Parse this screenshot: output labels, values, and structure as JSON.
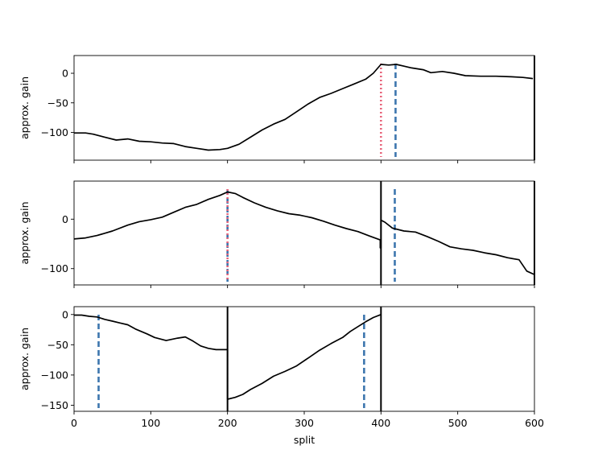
{
  "chart_data": [
    {
      "type": "line",
      "ylabel": "approx. gain",
      "xlim": [
        0,
        600
      ],
      "ylim": [
        -147,
        30
      ],
      "xticks": [
        0,
        100,
        200,
        300,
        400,
        500,
        600
      ],
      "show_x_tick_labels": false,
      "yticks": [
        0,
        -50,
        -100
      ],
      "tick_labels": {
        "y": [
          "0",
          "−50",
          "−100"
        ]
      },
      "series": [
        {
          "color": "#000000",
          "values": [
            [
              0,
              -101
            ],
            [
              15,
              -101
            ],
            [
              25,
              -103
            ],
            [
              40,
              -108
            ],
            [
              55,
              -113
            ],
            [
              70,
              -111
            ],
            [
              85,
              -115
            ],
            [
              100,
              -116
            ],
            [
              115,
              -118
            ],
            [
              130,
              -119
            ],
            [
              145,
              -124
            ],
            [
              160,
              -127
            ],
            [
              175,
              -130
            ],
            [
              190,
              -129
            ],
            [
              200,
              -127
            ],
            [
              215,
              -120
            ],
            [
              230,
              -108
            ],
            [
              245,
              -96
            ],
            [
              260,
              -86
            ],
            [
              275,
              -78
            ],
            [
              290,
              -65
            ],
            [
              305,
              -52
            ],
            [
              320,
              -41
            ],
            [
              335,
              -34
            ],
            [
              350,
              -26
            ],
            [
              365,
              -18
            ],
            [
              380,
              -10
            ],
            [
              390,
              0
            ],
            [
              400,
              15
            ],
            [
              410,
              14
            ],
            [
              420,
              15
            ],
            [
              430,
              12
            ],
            [
              440,
              9
            ],
            [
              455,
              6
            ],
            [
              465,
              1
            ],
            [
              480,
              3
            ],
            [
              495,
              0
            ],
            [
              510,
              -4
            ],
            [
              530,
              -5
            ],
            [
              550,
              -5
            ],
            [
              570,
              -6
            ],
            [
              585,
              -7
            ],
            [
              598,
              -9
            ]
          ]
        }
      ],
      "vlines": [
        {
          "x": 600,
          "style": "solid",
          "color": "#000000"
        },
        {
          "x": 400,
          "style": "dotted",
          "color": "#e7647a"
        },
        {
          "x": 419,
          "style": "dashed",
          "color": "#3d76ae"
        }
      ]
    },
    {
      "type": "line",
      "ylabel": "approx. gain",
      "xlim": [
        0,
        600
      ],
      "ylim": [
        -133,
        77
      ],
      "xticks": [
        0,
        100,
        200,
        300,
        400,
        500,
        600
      ],
      "show_x_tick_labels": false,
      "yticks": [
        0,
        -100
      ],
      "tick_labels": {
        "y": [
          "0",
          "−100"
        ]
      },
      "series": [
        {
          "color": "#000000",
          "values": [
            [
              0,
              -40
            ],
            [
              15,
              -38
            ],
            [
              30,
              -33
            ],
            [
              50,
              -24
            ],
            [
              70,
              -12
            ],
            [
              85,
              -5
            ],
            [
              100,
              -1
            ],
            [
              115,
              4
            ],
            [
              130,
              14
            ],
            [
              145,
              24
            ],
            [
              160,
              30
            ],
            [
              175,
              40
            ],
            [
              190,
              48
            ],
            [
              200,
              55
            ],
            [
              210,
              52
            ],
            [
              220,
              44
            ],
            [
              235,
              33
            ],
            [
              250,
              24
            ],
            [
              265,
              17
            ],
            [
              280,
              11
            ],
            [
              295,
              8
            ],
            [
              310,
              3
            ],
            [
              325,
              -4
            ],
            [
              340,
              -12
            ],
            [
              355,
              -19
            ],
            [
              370,
              -25
            ],
            [
              385,
              -34
            ],
            [
              399,
              -42
            ],
            [
              399,
              -58
            ],
            [
              400,
              -58
            ],
            [
              400,
              -2
            ],
            [
              405,
              -6
            ],
            [
              415,
              -18
            ],
            [
              430,
              -24
            ],
            [
              445,
              -26
            ],
            [
              460,
              -35
            ],
            [
              475,
              -45
            ],
            [
              490,
              -56
            ],
            [
              505,
              -60
            ],
            [
              520,
              -63
            ],
            [
              535,
              -68
            ],
            [
              550,
              -72
            ],
            [
              565,
              -78
            ],
            [
              580,
              -82
            ],
            [
              590,
              -105
            ],
            [
              600,
              -112
            ]
          ]
        }
      ],
      "vlines": [
        {
          "x": 400,
          "style": "solid",
          "color": "#000000"
        },
        {
          "x": 600,
          "style": "solid",
          "color": "#000000"
        },
        {
          "x": 200,
          "style": "dashed",
          "color": "#3d76ae"
        },
        {
          "x": 200,
          "style": "dotted",
          "color": "#e7647a"
        },
        {
          "x": 418,
          "style": "dashed",
          "color": "#3d76ae"
        }
      ]
    },
    {
      "type": "line",
      "ylabel": "approx. gain",
      "xlabel": "split",
      "xlim": [
        0,
        600
      ],
      "ylim": [
        -160,
        13
      ],
      "xticks": [
        0,
        100,
        200,
        300,
        400,
        500,
        600
      ],
      "show_x_tick_labels": true,
      "yticks": [
        0,
        -50,
        -100,
        -150
      ],
      "tick_labels": {
        "x": [
          "0",
          "100",
          "200",
          "300",
          "400",
          "500",
          "600"
        ],
        "y": [
          "0",
          "−50",
          "−100",
          "−150"
        ]
      },
      "series": [
        {
          "color": "#000000",
          "values": [
            [
              0,
              -1
            ],
            [
              10,
              -1
            ],
            [
              20,
              -3
            ],
            [
              30,
              -4
            ],
            [
              40,
              -8
            ],
            [
              50,
              -11
            ],
            [
              60,
              -14
            ],
            [
              70,
              -17
            ],
            [
              80,
              -24
            ],
            [
              95,
              -32
            ],
            [
              105,
              -38
            ],
            [
              120,
              -43
            ],
            [
              135,
              -39
            ],
            [
              145,
              -37
            ],
            [
              155,
              -44
            ],
            [
              165,
              -52
            ],
            [
              175,
              -56
            ],
            [
              185,
              -58
            ],
            [
              199,
              -58
            ],
            [
              200,
              -58
            ],
            [
              200,
              -140
            ],
            [
              210,
              -137
            ],
            [
              220,
              -132
            ],
            [
              230,
              -124
            ],
            [
              245,
              -114
            ],
            [
              260,
              -102
            ],
            [
              275,
              -94
            ],
            [
              290,
              -85
            ],
            [
              305,
              -72
            ],
            [
              320,
              -59
            ],
            [
              335,
              -48
            ],
            [
              350,
              -38
            ],
            [
              360,
              -28
            ],
            [
              370,
              -20
            ],
            [
              380,
              -12
            ],
            [
              390,
              -5
            ],
            [
              400,
              0
            ]
          ]
        }
      ],
      "vlines": [
        {
          "x": 200,
          "style": "solid",
          "color": "#000000"
        },
        {
          "x": 400,
          "style": "solid",
          "color": "#000000"
        },
        {
          "x": 32,
          "style": "dashed",
          "color": "#3d76ae"
        },
        {
          "x": 378,
          "style": "dashed",
          "color": "#3d76ae"
        }
      ]
    }
  ]
}
